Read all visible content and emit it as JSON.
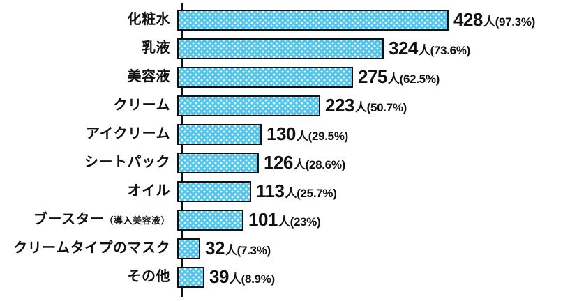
{
  "chart_data": {
    "type": "bar",
    "orientation": "horizontal",
    "title": "",
    "xlabel": "",
    "ylabel": "",
    "unit": "人",
    "xlim": [
      0,
      450
    ],
    "grid": false,
    "legend": false,
    "bar_color": "#55C6EA",
    "bar_border_color": "#111111",
    "bar_pattern": "white-dots",
    "categories": [
      "化粧水",
      "乳液",
      "美容液",
      "クリーム",
      "アイクリーム",
      "シートパック",
      "オイル",
      "ブースター（導入美容液）",
      "クリームタイプのマスク",
      "その他"
    ],
    "values": [
      428,
      324,
      275,
      223,
      130,
      126,
      113,
      101,
      32,
      39
    ],
    "percents": [
      97.3,
      73.6,
      62.5,
      50.7,
      29.5,
      28.6,
      25.7,
      23,
      7.3,
      8.9
    ],
    "rows": [
      {
        "label": "化粧水",
        "sublabel": "",
        "value": 428,
        "suffix": "人(97.3%)"
      },
      {
        "label": "乳液",
        "sublabel": "",
        "value": 324,
        "suffix": "人(73.6%)"
      },
      {
        "label": "美容液",
        "sublabel": "",
        "value": 275,
        "suffix": "人(62.5%)"
      },
      {
        "label": "クリーム",
        "sublabel": "",
        "value": 223,
        "suffix": "人(50.7%)"
      },
      {
        "label": "アイクリーム",
        "sublabel": "",
        "value": 130,
        "suffix": "人(29.5%)"
      },
      {
        "label": "シートパック",
        "sublabel": "",
        "value": 126,
        "suffix": "人(28.6%)"
      },
      {
        "label": "オイル",
        "sublabel": "",
        "value": 113,
        "suffix": "人(25.7%)"
      },
      {
        "label": "ブースター",
        "sublabel": "（導入美容液）",
        "value": 101,
        "suffix": "人(23%)"
      },
      {
        "label": "クリームタイプのマスク",
        "sublabel": "",
        "value": 32,
        "suffix": "人(7.3%)"
      },
      {
        "label": "その他",
        "sublabel": "",
        "value": 39,
        "suffix": "人(8.9%)"
      }
    ]
  }
}
